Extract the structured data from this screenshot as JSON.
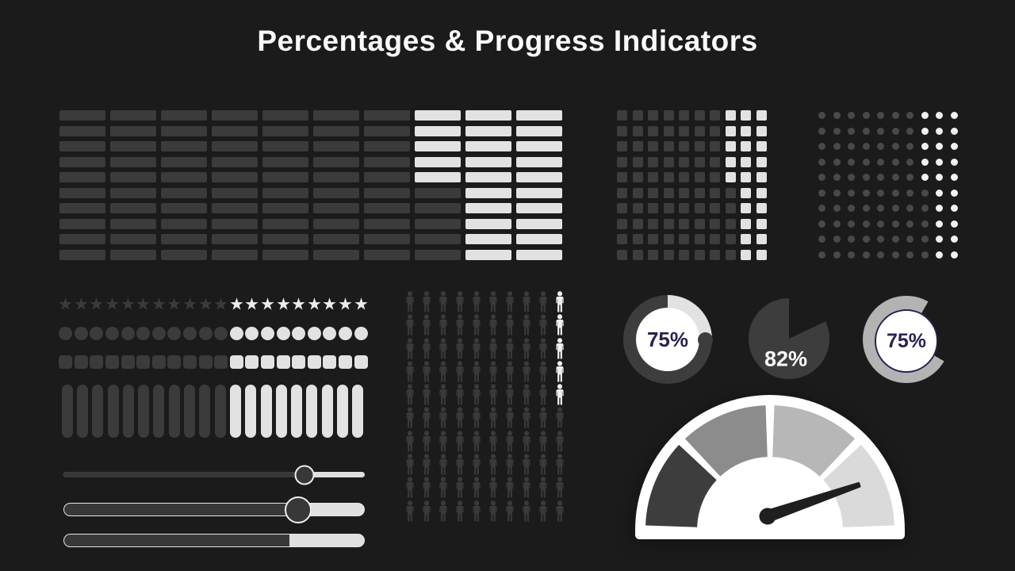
{
  "title": "Percentages & Progress Indicators",
  "colors": {
    "background": "#1b1b1b",
    "dark": "#3b3b3b",
    "dark2": "#3d3d3d",
    "dot_dark": "#494949",
    "light": "#e2e2e2",
    "bright": "#f2f2f2",
    "navy": "#2b2150",
    "silver": "#b3b3b3",
    "needle": "#1f1f1f",
    "slider_dark": "#383838",
    "slider_light": "#e0e0e0",
    "gauge_segments": [
      "#3d3d3d",
      "#8c8c8c",
      "#b7b7b7",
      "#dadada"
    ]
  },
  "chart_data": [
    {
      "id": "waffle-bars",
      "type": "waffle",
      "cell_shape": "horizontal-bar",
      "rows": 10,
      "cols": 10,
      "light_side": "right",
      "light_cells_per_row": [
        3,
        3,
        3,
        3,
        3,
        2,
        2,
        2,
        2,
        2
      ],
      "percent_light": 25
    },
    {
      "id": "waffle-squares",
      "type": "waffle",
      "cell_shape": "square",
      "rows": 10,
      "cols": 10,
      "light_side": "right",
      "light_cells_per_row": [
        3,
        3,
        3,
        3,
        3,
        2,
        2,
        2,
        2,
        2
      ],
      "percent_light": 25
    },
    {
      "id": "waffle-dots",
      "type": "waffle",
      "cell_shape": "dot",
      "rows": 10,
      "cols": 10,
      "light_side": "right",
      "light_cells_per_row": [
        3,
        3,
        3,
        3,
        3,
        2,
        2,
        2,
        2,
        2
      ],
      "percent_light": 25
    },
    {
      "id": "rating-stars",
      "type": "rating",
      "shape": "star",
      "total": 20,
      "light_count": 9,
      "light_side": "right",
      "percent_light": 45
    },
    {
      "id": "rating-circles",
      "type": "rating",
      "shape": "circle",
      "total": 20,
      "light_count": 9,
      "light_side": "right",
      "percent_light": 45
    },
    {
      "id": "rating-squares",
      "type": "rating",
      "shape": "square",
      "total": 20,
      "light_count": 9,
      "light_side": "right",
      "percent_light": 45
    },
    {
      "id": "rating-vbars",
      "type": "rating",
      "shape": "vbar",
      "total": 20,
      "light_count": 9,
      "light_side": "right",
      "percent_light": 45
    },
    {
      "id": "pictogram",
      "type": "pictogram",
      "rows": 10,
      "cols": 10,
      "light_side": "right",
      "light_per_row": [
        1,
        1,
        1,
        1,
        1,
        0,
        0,
        0,
        0,
        0
      ],
      "percent_light": 5
    },
    {
      "id": "donut",
      "type": "donut",
      "value": 75,
      "label": "75%",
      "start_deg": 90,
      "has_round_cap": true
    },
    {
      "id": "pie",
      "type": "pie",
      "value": 82,
      "label": "82%",
      "notch_from_deg": 0
    },
    {
      "id": "ring",
      "type": "ring",
      "value": 75,
      "label": "75%",
      "start_deg": 120
    },
    {
      "id": "gauge",
      "type": "gauge",
      "segments": 4,
      "needle_angle_above_horizontal_deg": 19
    },
    {
      "id": "sliders",
      "type": "sliders",
      "values": [
        80,
        78,
        75
      ]
    }
  ]
}
